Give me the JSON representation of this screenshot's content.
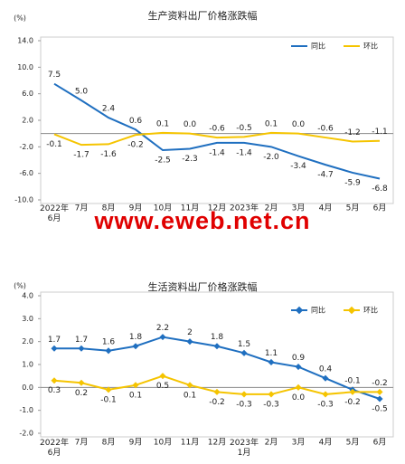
{
  "chart_data": [
    {
      "type": "line",
      "title": "生产资料出厂价格涨跌幅",
      "y_unit": "(%)",
      "categories": [
        "2022年\n6月",
        "7月",
        "8月",
        "9月",
        "10月",
        "11月",
        "12月",
        "2023年",
        "2月",
        "3月",
        "4月",
        "5月",
        "6月"
      ],
      "series": [
        {
          "name": "同比",
          "color": "#1f6fc0",
          "values": [
            7.5,
            5.0,
            2.4,
            0.6,
            -2.5,
            -2.3,
            -1.4,
            -1.4,
            -2.0,
            -3.4,
            -4.7,
            -5.9,
            -6.8
          ],
          "value_labels": [
            "7.5",
            "5.0",
            "2.4",
            "0.6",
            "-2.5",
            "-2.3",
            "-1.4",
            "-1.4",
            "-2.0",
            "-3.4",
            "-4.7",
            "-5.9",
            "-6.8"
          ]
        },
        {
          "name": "环比",
          "color": "#f5c400",
          "values": [
            -0.1,
            -1.7,
            -1.6,
            -0.2,
            0.1,
            0.0,
            -0.6,
            -0.5,
            0.1,
            0.0,
            -0.6,
            -1.2,
            -1.1
          ],
          "value_labels": [
            "-0.1",
            "-1.7",
            "-1.6",
            "-0.2",
            "0.1",
            "0.0",
            "-0.6",
            "-0.5",
            "0.1",
            "0.0",
            "-0.6",
            "-1.2",
            "-1.1"
          ]
        }
      ],
      "ylim": [
        -10,
        14
      ],
      "yticks": [
        {
          "value": -10,
          "label": "-10.0"
        },
        {
          "value": -6,
          "label": "-6.0"
        },
        {
          "value": -2,
          "label": "-2.0"
        },
        {
          "value": 2,
          "label": "2.0"
        },
        {
          "value": 6,
          "label": "6.0"
        },
        {
          "value": 10,
          "label": "10.0"
        },
        {
          "value": 14,
          "label": "14.0"
        }
      ],
      "grid": false,
      "legend": "top-right",
      "markers": false
    },
    {
      "type": "line",
      "title": "生活资料出厂价格涨跌幅",
      "y_unit": "(%)",
      "categories": [
        "2022年\n6月",
        "7月",
        "8月",
        "9月",
        "10月",
        "11月",
        "12月",
        "2023年\n1月",
        "2月",
        "3月",
        "4月",
        "5月",
        "6月"
      ],
      "series": [
        {
          "name": "同比",
          "color": "#1f6fc0",
          "values": [
            1.7,
            1.7,
            1.6,
            1.8,
            2.2,
            2.0,
            1.8,
            1.5,
            1.1,
            0.9,
            0.4,
            -0.1,
            -0.5
          ]
        },
        {
          "name": "环比",
          "color": "#f5c400",
          "values": [
            0.3,
            0.2,
            -0.1,
            0.1,
            0.5,
            0.1,
            -0.2,
            -0.3,
            -0.3,
            0.0,
            -0.3,
            -0.2,
            -0.2
          ],
          "value_labels": [
            "0.3",
            "0.2",
            "-0.1",
            "0.1",
            "0.5",
            "0.1",
            "-0.2",
            "-0.3",
            "-0.3",
            "0.0",
            "-0.3",
            "-0.2",
            "-0.2"
          ]
        }
      ],
      "ylim": [
        -2,
        4
      ],
      "yticks": [
        {
          "value": -2,
          "label": "-2.0"
        },
        {
          "value": -1,
          "label": "-1.0"
        },
        {
          "value": 0,
          "label": "0.0"
        },
        {
          "value": 1,
          "label": "1.0"
        },
        {
          "value": 2,
          "label": "2.0"
        },
        {
          "value": 3,
          "label": "3.0"
        },
        {
          "value": 4,
          "label": "4.0"
        }
      ],
      "grid": false,
      "legend": "top-right",
      "markers": true
    }
  ],
  "watermark": "www.eweb.net.cn"
}
